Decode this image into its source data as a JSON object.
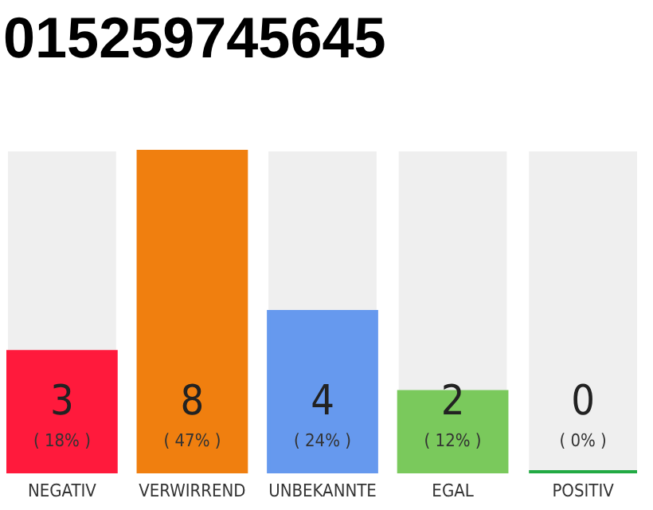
{
  "chart_data": {
    "type": "bar",
    "title": "015259745645",
    "categories": [
      "NEGATIV",
      "VERWIRREND",
      "UNBEKANNTE",
      "EGAL",
      "POSITIV"
    ],
    "values": [
      3,
      8,
      4,
      2,
      0
    ],
    "colors": [
      "#ff1a3c",
      "#f07f0f",
      "#6699ee",
      "#7ac95c",
      "#22aa44"
    ],
    "data_labels": true,
    "annotations": [
      "( 18% )",
      "( 47% )",
      "( 24% )",
      "( 12% )",
      "( 0% )"
    ],
    "tick_labels": "x"
  }
}
